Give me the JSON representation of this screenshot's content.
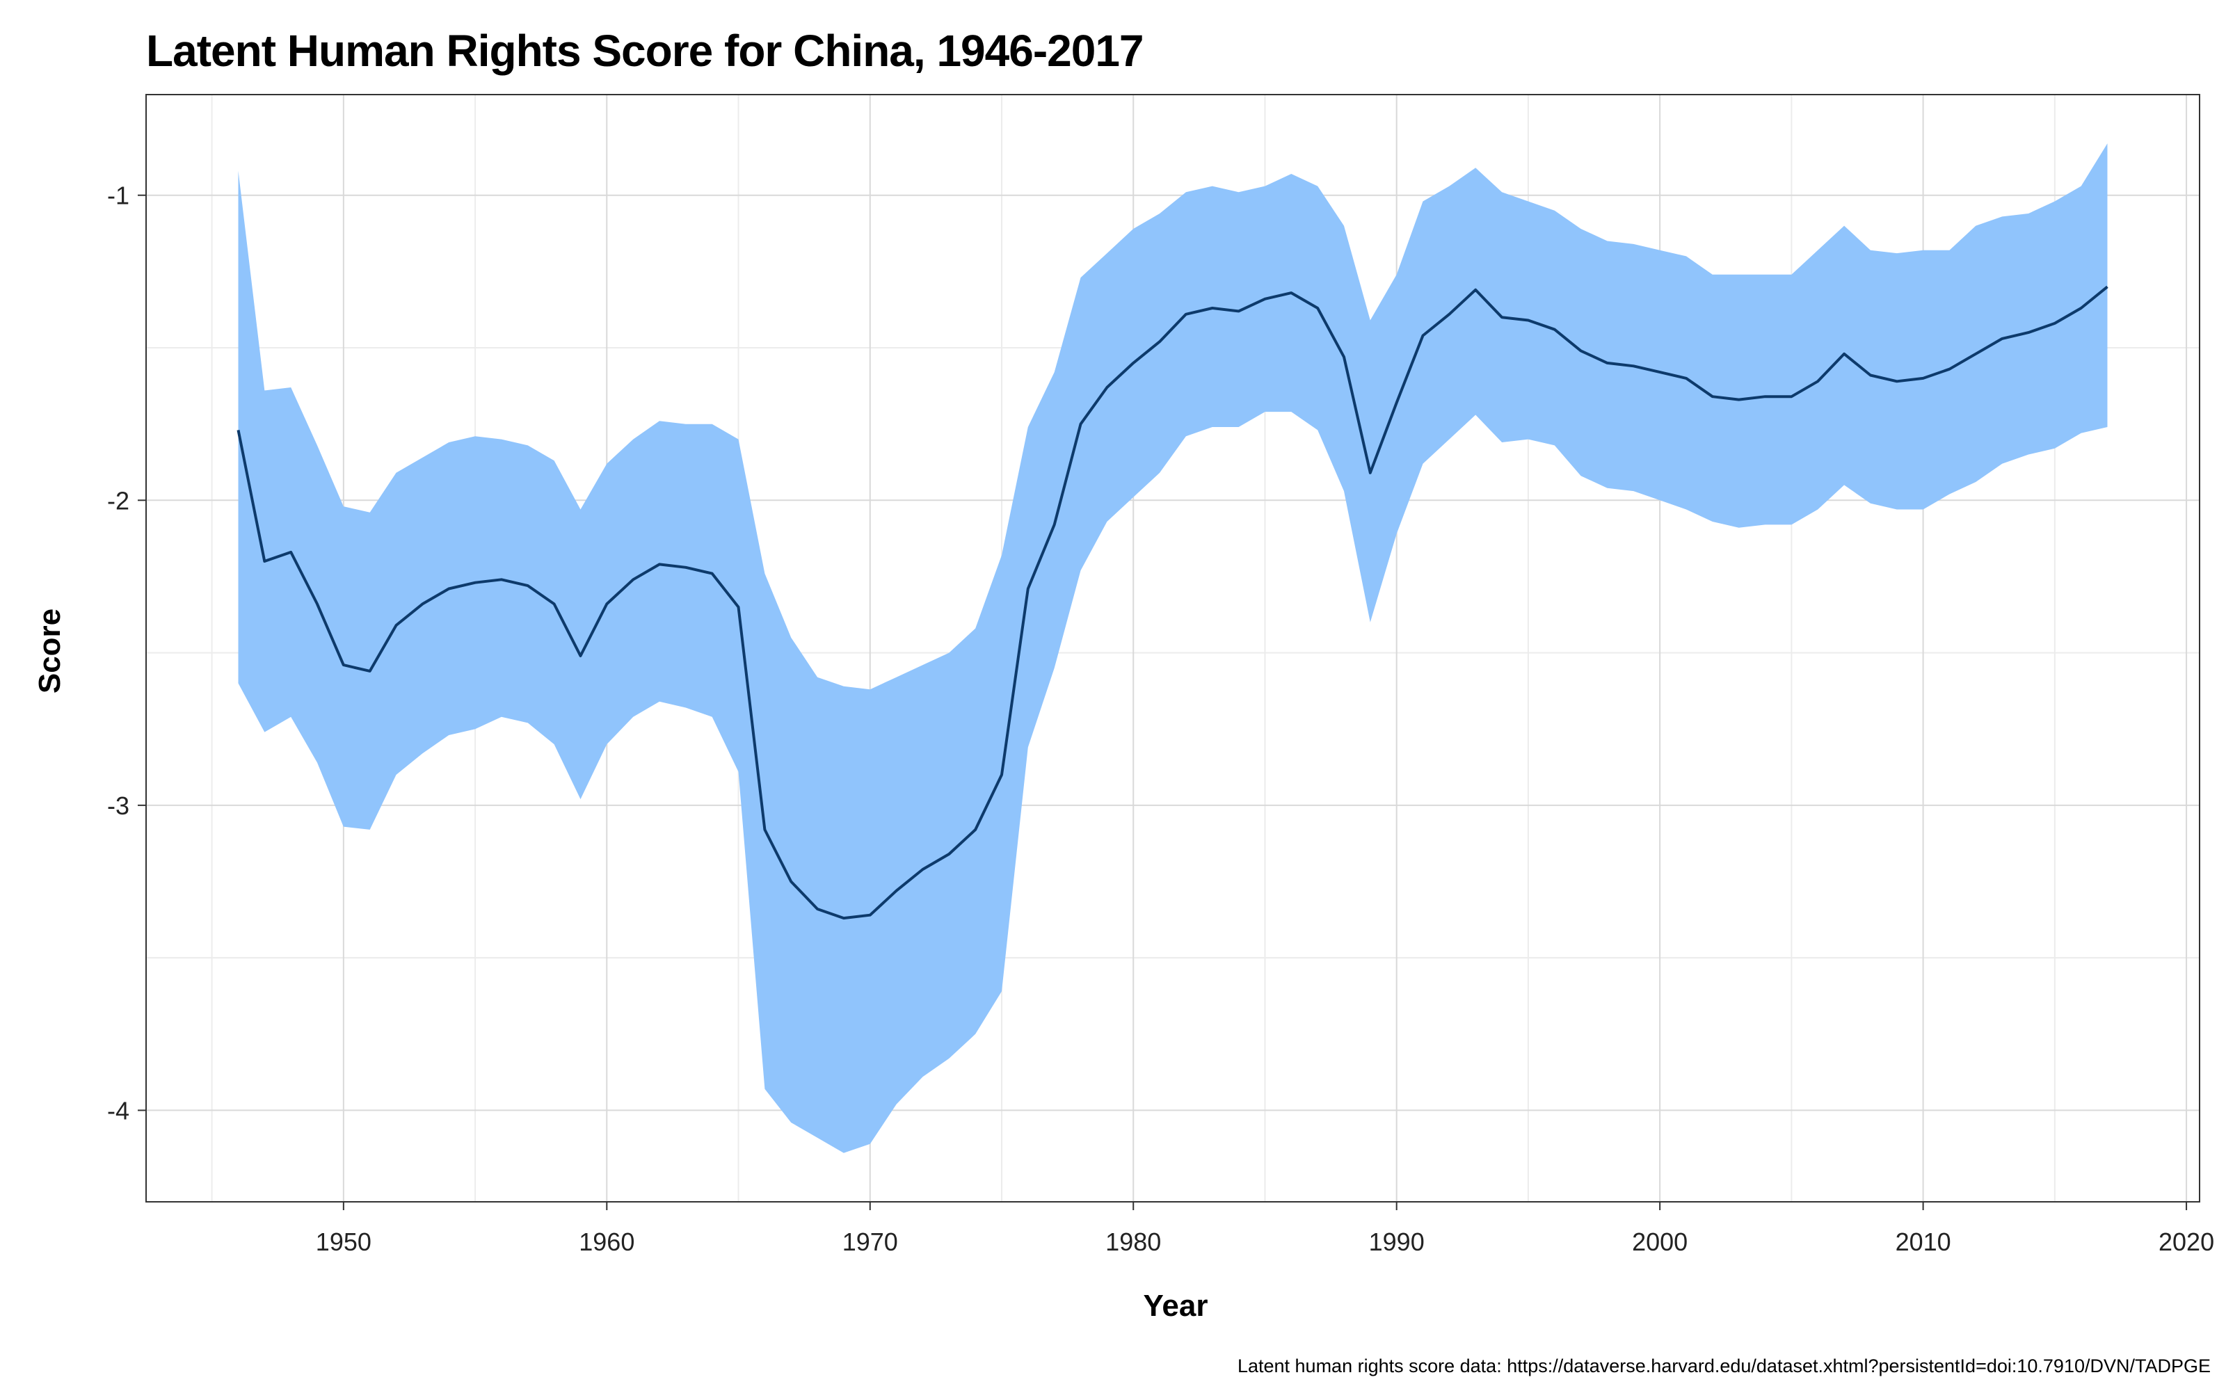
{
  "chart_data": {
    "type": "area",
    "title": "Latent Human Rights Score for China, 1946-2017",
    "xlabel": "Year",
    "ylabel": "Score",
    "caption": "Latent human rights score data: https://dataverse.harvard.edu/dataset.xhtml?persistentId=doi:10.7910/DVN/TADPGE",
    "xlim": [
      1942.5,
      2020.5
    ],
    "ylim": [
      -4.3,
      -0.67
    ],
    "x_ticks": [
      1950,
      1960,
      1970,
      1980,
      1990,
      2000,
      2010,
      2020
    ],
    "y_ticks": [
      -1,
      -2,
      -3,
      -4
    ],
    "x_tick_labels": [
      "1950",
      "1960",
      "1970",
      "1980",
      "1990",
      "2000",
      "2010",
      "2020"
    ],
    "y_tick_labels": [
      "-1",
      "-2",
      "-3",
      "-4"
    ],
    "grid": true,
    "colors": {
      "band": "#90c4fc",
      "line": "#0d3a6b",
      "grid": "#d9d9d9",
      "border": "#333333"
    },
    "x": [
      1946,
      1947,
      1948,
      1949,
      1950,
      1951,
      1952,
      1953,
      1954,
      1955,
      1956,
      1957,
      1958,
      1959,
      1960,
      1961,
      1962,
      1963,
      1964,
      1965,
      1966,
      1967,
      1968,
      1969,
      1970,
      1971,
      1972,
      1973,
      1974,
      1975,
      1976,
      1977,
      1978,
      1979,
      1980,
      1981,
      1982,
      1983,
      1984,
      1985,
      1986,
      1987,
      1988,
      1989,
      1990,
      1991,
      1992,
      1993,
      1994,
      1995,
      1996,
      1997,
      1998,
      1999,
      2000,
      2001,
      2002,
      2003,
      2004,
      2005,
      2006,
      2007,
      2008,
      2009,
      2010,
      2011,
      2012,
      2013,
      2014,
      2015,
      2016,
      2017
    ],
    "series": [
      {
        "role": "mean",
        "values": [
          -1.77,
          -2.2,
          -2.17,
          -2.34,
          -2.54,
          -2.56,
          -2.41,
          -2.34,
          -2.29,
          -2.27,
          -2.26,
          -2.28,
          -2.34,
          -2.51,
          -2.34,
          -2.26,
          -2.21,
          -2.22,
          -2.24,
          -2.35,
          -3.08,
          -3.25,
          -3.34,
          -3.37,
          -3.36,
          -3.28,
          -3.21,
          -3.16,
          -3.08,
          -2.9,
          -2.29,
          -2.08,
          -1.75,
          -1.63,
          -1.55,
          -1.48,
          -1.39,
          -1.37,
          -1.38,
          -1.34,
          -1.32,
          -1.37,
          -1.53,
          -1.91,
          -1.68,
          -1.46,
          -1.39,
          -1.31,
          -1.4,
          -1.41,
          -1.44,
          -1.51,
          -1.55,
          -1.56,
          -1.58,
          -1.6,
          -1.66,
          -1.67,
          -1.66,
          -1.66,
          -1.61,
          -1.52,
          -1.59,
          -1.61,
          -1.6,
          -1.57,
          -1.52,
          -1.47,
          -1.45,
          -1.42,
          -1.37,
          -1.3
        ]
      },
      {
        "role": "upper",
        "values": [
          -0.92,
          -1.64,
          -1.63,
          -1.82,
          -2.02,
          -2.04,
          -1.91,
          -1.86,
          -1.81,
          -1.79,
          -1.8,
          -1.82,
          -1.87,
          -2.03,
          -1.88,
          -1.8,
          -1.74,
          -1.75,
          -1.75,
          -1.8,
          -2.24,
          -2.45,
          -2.58,
          -2.61,
          -2.62,
          -2.58,
          -2.54,
          -2.5,
          -2.42,
          -2.18,
          -1.76,
          -1.58,
          -1.27,
          -1.19,
          -1.11,
          -1.06,
          -0.99,
          -0.97,
          -0.99,
          -0.97,
          -0.93,
          -0.97,
          -1.1,
          -1.41,
          -1.26,
          -1.02,
          -0.97,
          -0.91,
          -0.99,
          -1.02,
          -1.05,
          -1.11,
          -1.15,
          -1.16,
          -1.18,
          -1.2,
          -1.26,
          -1.26,
          -1.26,
          -1.26,
          -1.18,
          -1.1,
          -1.18,
          -1.19,
          -1.18,
          -1.18,
          -1.1,
          -1.07,
          -1.06,
          -1.02,
          -0.97,
          -0.83
        ]
      },
      {
        "role": "lower",
        "values": [
          -2.6,
          -2.76,
          -2.71,
          -2.86,
          -3.07,
          -3.08,
          -2.9,
          -2.83,
          -2.77,
          -2.75,
          -2.71,
          -2.73,
          -2.8,
          -2.98,
          -2.8,
          -2.71,
          -2.66,
          -2.68,
          -2.71,
          -2.89,
          -3.93,
          -4.04,
          -4.09,
          -4.14,
          -4.11,
          -3.98,
          -3.89,
          -3.83,
          -3.75,
          -3.61,
          -2.81,
          -2.55,
          -2.23,
          -2.07,
          -1.99,
          -1.91,
          -1.79,
          -1.76,
          -1.76,
          -1.71,
          -1.71,
          -1.77,
          -1.97,
          -2.4,
          -2.11,
          -1.88,
          -1.8,
          -1.72,
          -1.81,
          -1.8,
          -1.82,
          -1.92,
          -1.96,
          -1.97,
          -2.0,
          -2.03,
          -2.07,
          -2.09,
          -2.08,
          -2.08,
          -2.03,
          -1.95,
          -2.01,
          -2.03,
          -2.03,
          -1.98,
          -1.94,
          -1.88,
          -1.85,
          -1.83,
          -1.78,
          -1.76
        ]
      }
    ]
  }
}
